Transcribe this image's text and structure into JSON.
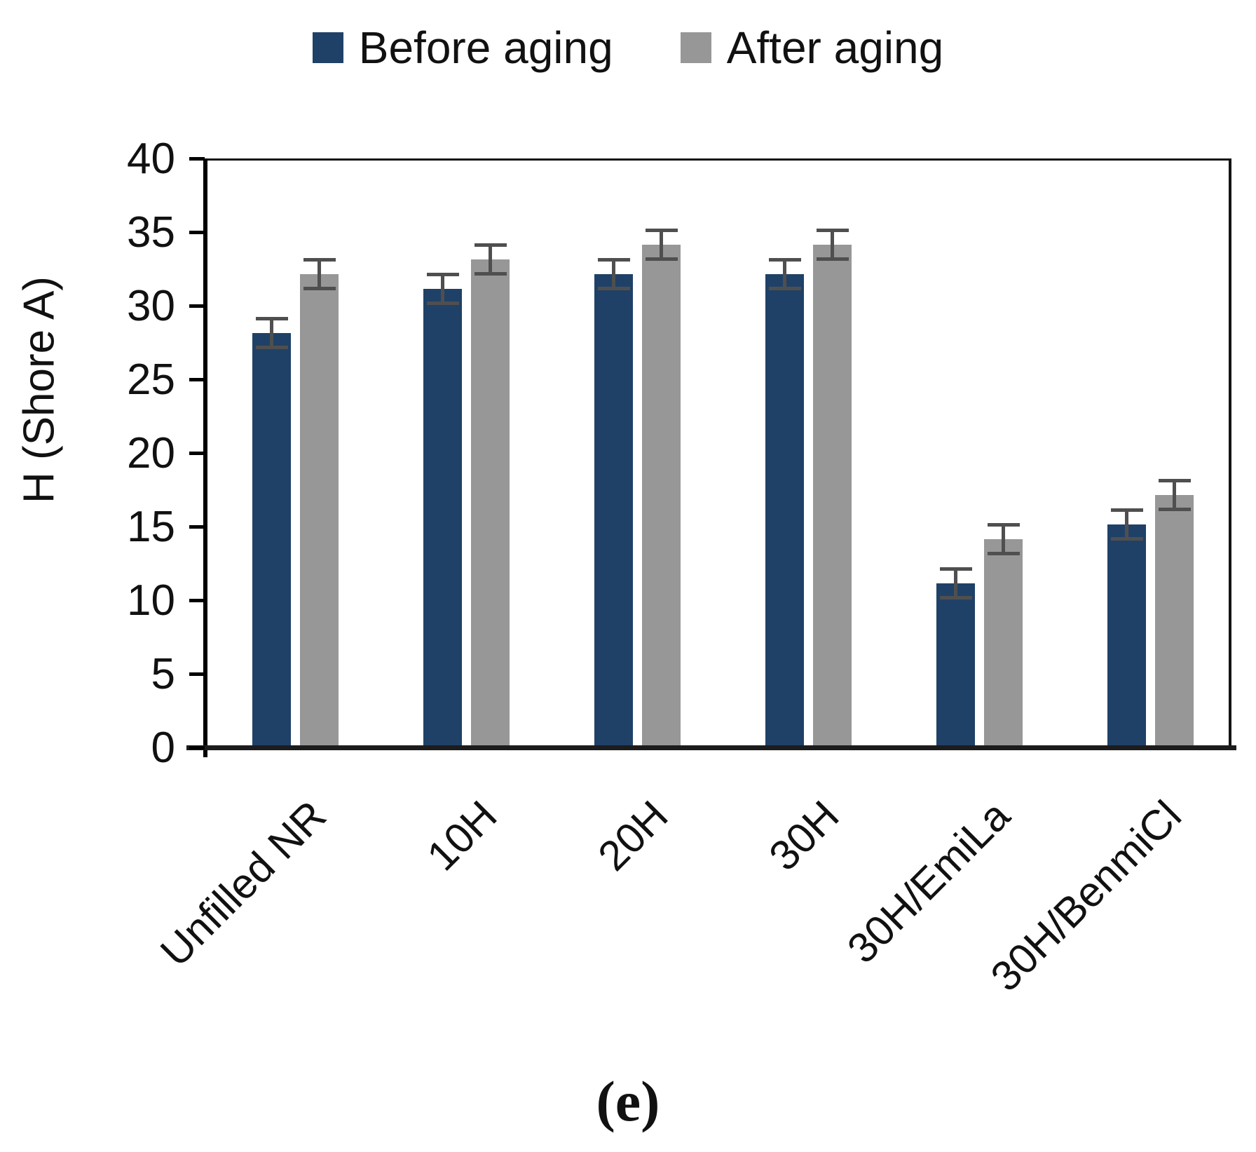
{
  "caption": "(e)",
  "chart_data": {
    "type": "bar",
    "title": "",
    "xlabel": "",
    "ylabel": "H (Shore A)",
    "ylim": [
      0,
      40
    ],
    "yticks": [
      0,
      5,
      10,
      15,
      20,
      25,
      30,
      35,
      40
    ],
    "grid": false,
    "legend_position": "top",
    "categories": [
      "Unfilled NR",
      "10H",
      "20H",
      "30H",
      "30H/EmiLa",
      "30H/BenmiCl"
    ],
    "series": [
      {
        "name": "Before aging",
        "color": "#1f4167",
        "values": [
          28,
          31,
          32,
          32,
          11,
          15
        ],
        "errors": [
          1,
          1,
          1,
          1,
          1,
          1
        ]
      },
      {
        "name": "After aging",
        "color": "#979797",
        "values": [
          32,
          33,
          34,
          34,
          14,
          17
        ],
        "errors": [
          1,
          1,
          1,
          1,
          1,
          1
        ]
      }
    ],
    "error_bar_color": "#4f4f4f",
    "axis_color": "#000000"
  }
}
